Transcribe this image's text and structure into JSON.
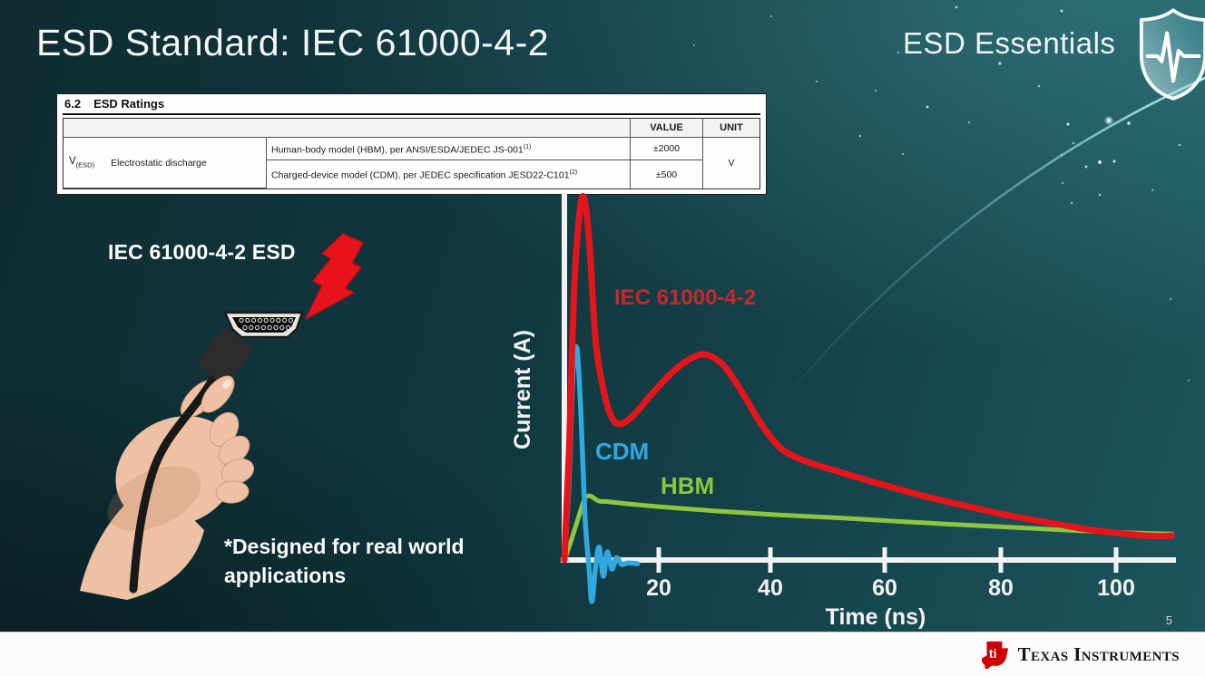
{
  "slide": {
    "title": "ESD Standard: IEC 61000-4-2",
    "brand": "ESD Essentials",
    "page_number": "5",
    "illustration_label": "IEC 61000-4-2 ESD",
    "note_line1": "*Designed for real world",
    "note_line2": "applications"
  },
  "ratings_table": {
    "section": "6.2",
    "section_title": "ESD Ratings",
    "col_headers": [
      "VALUE",
      "UNIT"
    ],
    "row_symbol": "V",
    "row_symbol_sub": "(ESD)",
    "row_label": "Electrostatic discharge",
    "rows": [
      {
        "description": "Human-body model (HBM), per ANSI/ESDA/JEDEC JS-001",
        "footnote": "(1)",
        "value": "±2000"
      },
      {
        "description": "Charged-device model (CDM), per JEDEC specification JESD22-C101",
        "footnote": "(2)",
        "value": "±500"
      }
    ],
    "unit": "V"
  },
  "chart_data": {
    "type": "line",
    "xlabel": "Time (ns)",
    "ylabel": "Current (A)",
    "x_ticks": [
      20,
      40,
      60,
      80,
      100
    ],
    "xlim": [
      0,
      112
    ],
    "y_ticks": [],
    "grid": false,
    "note": "y-axis unlabeled; amplitudes normalized to IEC 61000-4-2 peak = 1.0",
    "series": [
      {
        "name": "IEC 61000-4-2",
        "color": "#e6151c",
        "label_color": "#c9282b",
        "points": [
          [
            3.5,
            0.0
          ],
          [
            4.3,
            0.3
          ],
          [
            5.2,
            0.75
          ],
          [
            6.2,
            0.97
          ],
          [
            7.0,
            1.0
          ],
          [
            7.9,
            0.87
          ],
          [
            9.0,
            0.6
          ],
          [
            10.5,
            0.46
          ],
          [
            11.8,
            0.395
          ],
          [
            13.2,
            0.377
          ],
          [
            15.5,
            0.4
          ],
          [
            18.5,
            0.455
          ],
          [
            22.0,
            0.515
          ],
          [
            25.0,
            0.553
          ],
          [
            27.9,
            0.57
          ],
          [
            31.0,
            0.545
          ],
          [
            34.0,
            0.48
          ],
          [
            38.0,
            0.375
          ],
          [
            41.0,
            0.315
          ],
          [
            43.0,
            0.293
          ],
          [
            46.0,
            0.272
          ],
          [
            50.0,
            0.252
          ],
          [
            55.0,
            0.228
          ],
          [
            60.0,
            0.205
          ],
          [
            67.0,
            0.175
          ],
          [
            74.0,
            0.149
          ],
          [
            81.0,
            0.124
          ],
          [
            88.0,
            0.104
          ],
          [
            95.0,
            0.085
          ],
          [
            100.0,
            0.075
          ],
          [
            104.0,
            0.069
          ],
          [
            107.5,
            0.066
          ],
          [
            109.8,
            0.067
          ]
        ]
      },
      {
        "name": "CDM",
        "color": "#2fa9e0",
        "label_color": "#2fa9e0",
        "points": [
          [
            3.5,
            0.0
          ],
          [
            4.3,
            0.22
          ],
          [
            5.0,
            0.52
          ],
          [
            5.7,
            0.585
          ],
          [
            6.4,
            0.4
          ],
          [
            7.1,
            0.12
          ],
          [
            7.8,
            -0.02
          ],
          [
            8.3,
            -0.115
          ],
          [
            9.0,
            -0.01
          ],
          [
            9.6,
            0.035
          ],
          [
            10.3,
            -0.045
          ],
          [
            11.0,
            0.022
          ],
          [
            11.8,
            -0.025
          ],
          [
            12.6,
            0.006
          ],
          [
            13.5,
            -0.012
          ],
          [
            14.6,
            -0.008
          ],
          [
            16.3,
            -0.01
          ]
        ]
      },
      {
        "name": "HBM",
        "color": "#8dc63f",
        "label_color": "#8dc63f",
        "points": [
          [
            3.5,
            0.0
          ],
          [
            4.6,
            0.05
          ],
          [
            5.8,
            0.11
          ],
          [
            7.0,
            0.168
          ],
          [
            7.9,
            0.178
          ],
          [
            8.8,
            0.17
          ],
          [
            9.6,
            0.163
          ],
          [
            11.0,
            0.162
          ],
          [
            15.0,
            0.155
          ],
          [
            20.0,
            0.148
          ],
          [
            30.0,
            0.136
          ],
          [
            40.0,
            0.126
          ],
          [
            50.0,
            0.118
          ],
          [
            60.0,
            0.109
          ],
          [
            70.0,
            0.1
          ],
          [
            80.0,
            0.092
          ],
          [
            90.0,
            0.084
          ],
          [
            100.0,
            0.077
          ],
          [
            105.0,
            0.074
          ],
          [
            109.8,
            0.072
          ]
        ]
      }
    ]
  },
  "footer": {
    "logo_text": "Texas Instruments",
    "logo_monogram": "ti"
  },
  "colors": {
    "background_dark": "#0f2c31",
    "background_light": "#1d565e",
    "iec_red": "#e6151c",
    "cdm_blue": "#2fa9e0",
    "hbm_green": "#8dc63f",
    "axis_white": "#f2f2f2",
    "ti_red": "#cc0001",
    "footer_bg": "#fcfcfc"
  }
}
